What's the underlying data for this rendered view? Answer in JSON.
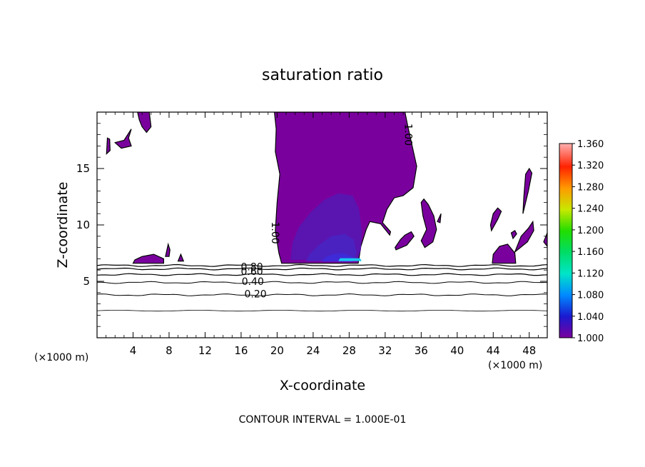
{
  "chart_data": {
    "type": "contour",
    "title": "saturation ratio",
    "xlabel": "X-coordinate",
    "ylabel": "Z-coordinate",
    "x_units": "(×1000 m)",
    "y_units": "(×1000 m)",
    "xlim": [
      0,
      50
    ],
    "ylim": [
      0,
      20
    ],
    "x_ticks": [
      4,
      8,
      12,
      16,
      20,
      24,
      28,
      32,
      36,
      40,
      44,
      48
    ],
    "y_ticks": [
      5,
      10,
      15
    ],
    "footer": "CONTOUR INTERVAL = 1.000E-01",
    "colorbar": {
      "min": 1.0,
      "max": 1.36,
      "labels": [
        "1.360",
        "1.320",
        "1.280",
        "1.240",
        "1.200",
        "1.160",
        "1.120",
        "1.080",
        "1.040",
        "1.000"
      ]
    },
    "contour_labels": [
      {
        "text": "1.00",
        "x": 34.6,
        "z": 18.0
      },
      {
        "text": "1.00",
        "x": 19.8,
        "z": 9.3
      },
      {
        "text": "0.80",
        "x": 17.2,
        "z": 6.3
      },
      {
        "text": "0.60",
        "x": 17.2,
        "z": 5.9
      },
      {
        "text": "0.40",
        "x": 17.3,
        "z": 5.0
      },
      {
        "text": "0.20",
        "x": 17.6,
        "z": 3.9
      }
    ],
    "contour_levels": [
      {
        "level": 0.2,
        "z": 3.8
      },
      {
        "level": 0.4,
        "z": 4.9
      },
      {
        "level": 0.6,
        "z": 5.6
      },
      {
        "level": 0.8,
        "z": 6.1
      },
      {
        "level": 0.9,
        "z": 6.4
      }
    ],
    "supersaturated_regions": [
      {
        "name": "main-column",
        "points": [
          [
            19.7,
            20
          ],
          [
            34.2,
            20
          ],
          [
            34.5,
            18.8
          ],
          [
            35.0,
            17.0
          ],
          [
            35.5,
            15.2
          ],
          [
            35.1,
            13.3
          ],
          [
            34.0,
            12.6
          ],
          [
            33.0,
            12.4
          ],
          [
            32.2,
            11.4
          ],
          [
            31.7,
            10.2
          ],
          [
            32.6,
            9.4
          ],
          [
            32.5,
            9.1
          ],
          [
            31.5,
            10.1
          ],
          [
            30.3,
            10.3
          ],
          [
            29.9,
            9.6
          ],
          [
            29.3,
            8.1
          ],
          [
            29.0,
            6.6
          ],
          [
            20.5,
            6.6
          ],
          [
            20.2,
            7.5
          ],
          [
            19.8,
            9.5
          ],
          [
            20.0,
            12.0
          ],
          [
            20.3,
            14.5
          ],
          [
            19.8,
            16.5
          ],
          [
            19.9,
            18.5
          ]
        ]
      },
      {
        "name": "upper-left-patch",
        "points": [
          [
            4.5,
            20
          ],
          [
            5.8,
            20
          ],
          [
            6.0,
            18.7
          ],
          [
            5.5,
            18.2
          ],
          [
            5.0,
            18.7
          ],
          [
            4.7,
            19.3
          ]
        ]
      },
      {
        "name": "left-blob",
        "points": [
          [
            2.0,
            17.3
          ],
          [
            3.0,
            17.5
          ],
          [
            3.8,
            18.5
          ],
          [
            3.5,
            17.7
          ],
          [
            3.8,
            17.0
          ],
          [
            2.7,
            16.8
          ]
        ]
      },
      {
        "name": "far-left-sliver",
        "points": [
          [
            1.05,
            16.3
          ],
          [
            1.45,
            16.6
          ],
          [
            1.4,
            17.6
          ],
          [
            1.15,
            17.7
          ]
        ]
      },
      {
        "name": "surface-bump-4-7",
        "points": [
          [
            4.0,
            6.6
          ],
          [
            7.4,
            6.6
          ],
          [
            7.4,
            7.0
          ],
          [
            6.3,
            7.4
          ],
          [
            5.0,
            7.2
          ],
          [
            4.2,
            6.9
          ]
        ]
      },
      {
        "name": "surface-bump-8",
        "points": [
          [
            7.6,
            7.2
          ],
          [
            7.9,
            8.3
          ],
          [
            8.1,
            7.8
          ],
          [
            8.0,
            7.2
          ]
        ]
      },
      {
        "name": "surface-bump-9",
        "points": [
          [
            9.0,
            6.8
          ],
          [
            9.3,
            7.4
          ],
          [
            9.6,
            6.8
          ]
        ]
      },
      {
        "name": "right-column-33",
        "points": [
          [
            33.2,
            7.8
          ],
          [
            34.4,
            8.2
          ],
          [
            35.2,
            9.0
          ],
          [
            34.9,
            9.4
          ],
          [
            34.2,
            9.1
          ],
          [
            33.7,
            8.7
          ],
          [
            33.1,
            8.0
          ]
        ]
      },
      {
        "name": "right-column-37",
        "points": [
          [
            36.4,
            8.0
          ],
          [
            37.3,
            8.5
          ],
          [
            37.7,
            9.6
          ],
          [
            37.4,
            10.8
          ],
          [
            36.8,
            11.8
          ],
          [
            36.3,
            12.3
          ],
          [
            36.0,
            12.0
          ],
          [
            36.2,
            10.8
          ],
          [
            36.6,
            9.6
          ],
          [
            36.0,
            8.6
          ]
        ]
      },
      {
        "name": "right-column-38",
        "points": [
          [
            37.8,
            10.3
          ],
          [
            38.2,
            11.0
          ],
          [
            38.1,
            10.2
          ]
        ]
      },
      {
        "name": "right-column-45",
        "points": [
          [
            43.9,
            6.6
          ],
          [
            46.5,
            6.6
          ],
          [
            46.4,
            7.5
          ],
          [
            45.6,
            8.3
          ],
          [
            44.7,
            8.1
          ],
          [
            44.0,
            7.4
          ]
        ]
      },
      {
        "name": "right-column-44-upper",
        "points": [
          [
            43.8,
            9.5
          ],
          [
            44.5,
            10.5
          ],
          [
            44.9,
            11.2
          ],
          [
            44.5,
            11.5
          ],
          [
            44.0,
            11.0
          ],
          [
            43.7,
            10.0
          ]
        ]
      },
      {
        "name": "right-column-47",
        "points": [
          [
            46.4,
            7.6
          ],
          [
            47.8,
            8.5
          ],
          [
            48.5,
            9.5
          ],
          [
            48.4,
            10.3
          ],
          [
            47.9,
            9.7
          ],
          [
            47.1,
            9.0
          ]
        ]
      },
      {
        "name": "right-column-47-small",
        "points": [
          [
            46.2,
            8.8
          ],
          [
            46.6,
            9.2
          ],
          [
            46.4,
            9.5
          ],
          [
            46.0,
            9.3
          ]
        ]
      },
      {
        "name": "far-right-upper",
        "points": [
          [
            47.3,
            11.0
          ],
          [
            47.9,
            13.0
          ],
          [
            48.3,
            14.6
          ],
          [
            48.0,
            15.0
          ],
          [
            47.6,
            14.5
          ],
          [
            47.4,
            12.5
          ]
        ]
      },
      {
        "name": "right-edge",
        "points": [
          [
            49.6,
            8.5
          ],
          [
            50,
            9.3
          ],
          [
            50,
            8.1
          ],
          [
            49.7,
            8.4
          ]
        ]
      }
    ],
    "enhanced_regions": [
      {
        "name": "inner-1.02",
        "value": 1.02,
        "points": [
          [
            21.5,
            6.9
          ],
          [
            28.9,
            6.9
          ],
          [
            29.3,
            7.8
          ],
          [
            29.4,
            9.5
          ],
          [
            29.1,
            11.4
          ],
          [
            28.4,
            12.6
          ],
          [
            26.8,
            12.8
          ],
          [
            25.2,
            12.2
          ],
          [
            23.7,
            11.1
          ],
          [
            22.4,
            9.8
          ],
          [
            21.7,
            8.4
          ]
        ]
      },
      {
        "name": "inner-1.04",
        "value": 1.04,
        "points": [
          [
            23.2,
            6.8
          ],
          [
            28.6,
            6.8
          ],
          [
            28.8,
            7.6
          ],
          [
            28.5,
            8.7
          ],
          [
            27.5,
            9.2
          ],
          [
            26.0,
            9.0
          ],
          [
            24.6,
            8.2
          ],
          [
            23.6,
            7.4
          ]
        ]
      },
      {
        "name": "inner-1.06",
        "value": 1.06,
        "points": [
          [
            25.0,
            6.75
          ],
          [
            28.4,
            6.75
          ],
          [
            28.4,
            7.15
          ],
          [
            27.4,
            7.5
          ],
          [
            26.2,
            7.4
          ],
          [
            25.3,
            7.1
          ]
        ]
      },
      {
        "name": "peak-1.10",
        "value": 1.1,
        "points": [
          [
            26.8,
            6.8
          ],
          [
            29.4,
            6.8
          ],
          [
            29.2,
            7.05
          ],
          [
            27.0,
            7.05
          ]
        ]
      }
    ]
  }
}
